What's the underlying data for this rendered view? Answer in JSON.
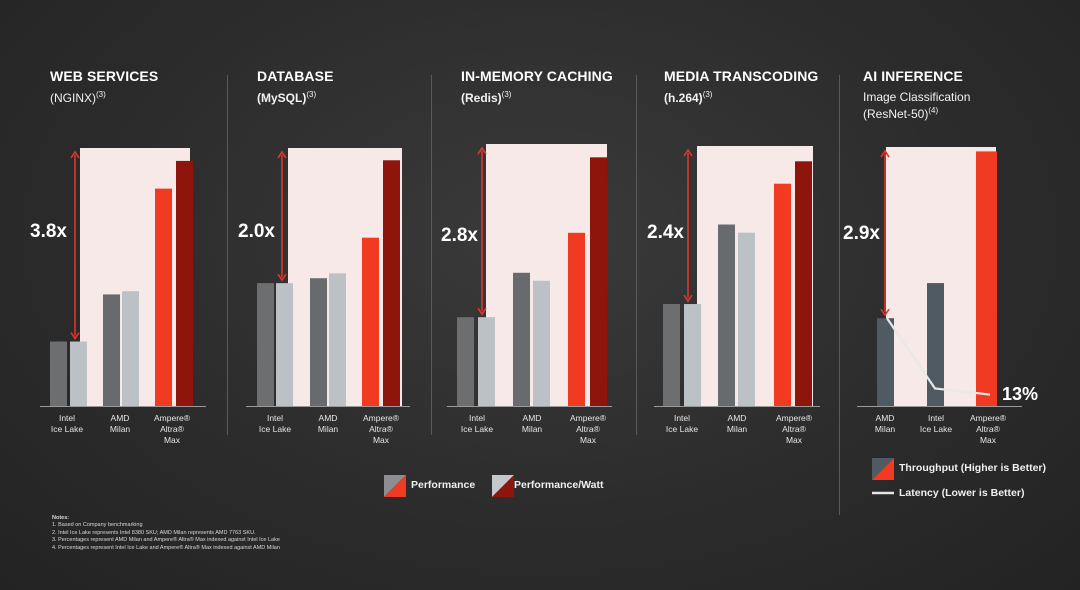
{
  "panels": [
    {
      "title": "WEB SERVICES",
      "subtitle": "(NGINX)",
      "subtitle_note": "(3)",
      "multiplier": "3.8x",
      "x_labels": [
        [
          "Intel",
          "Ice Lake"
        ],
        [
          "AMD",
          "Milan"
        ],
        [
          "Ampere®",
          "Altra®",
          "Max"
        ]
      ]
    },
    {
      "title": "DATABASE",
      "subtitle": "(MySQL)",
      "subtitle_note": "(3)",
      "multiplier": "2.0x",
      "x_labels": [
        [
          "Intel",
          "Ice Lake"
        ],
        [
          "AMD",
          "Milan"
        ],
        [
          "Ampere®",
          "Altra®",
          "Max"
        ]
      ]
    },
    {
      "title": "IN-MEMORY CACHING",
      "subtitle": "(Redis)",
      "subtitle_note": "(3)",
      "multiplier": "2.8x",
      "x_labels": [
        [
          "Intel",
          "Ice Lake"
        ],
        [
          "AMD",
          "Milan"
        ],
        [
          "Ampere®",
          "Altra®",
          "Max"
        ]
      ]
    },
    {
      "title": "MEDIA TRANSCODING",
      "subtitle": "(h.264)",
      "subtitle_note": "(3)",
      "multiplier": "2.4x",
      "x_labels": [
        [
          "Intel",
          "Ice Lake"
        ],
        [
          "AMD",
          "Milan"
        ],
        [
          "Ampere®",
          "Altra®",
          "Max"
        ]
      ]
    },
    {
      "title": "AI INFERENCE",
      "subtitle_line1": "Image Classification",
      "subtitle": "(ResNet-50)",
      "subtitle_note": "(4)",
      "multiplier": "2.9x",
      "latency_label": "13%",
      "x_labels": [
        [
          "AMD",
          "Milan"
        ],
        [
          "Intel",
          "Ice Lake"
        ],
        [
          "Ampere®",
          "Altra®",
          "Max"
        ]
      ]
    }
  ],
  "legend": {
    "performance": "Performance",
    "performance_watt": "Performance/Watt",
    "throughput": "Throughput (Higher is Better)",
    "latency": "Latency (Lower is Better)"
  },
  "notes": {
    "heading": "Notes:",
    "items": [
      "1.  Based on Company benchmarking",
      "2.  Intel Ice Lake represents Intel 8380 SKU; AMD Milan represents AMD 7763 SKU.",
      "3.  Percentages represent AMD Milan and Ampere® Altra® Max indexed against Intel Ice Lake",
      "4.  Percentages represent Intel Ice Lake and Ampere® Altra® Max indexed against AMD Milan"
    ]
  },
  "colors": {
    "gray_dark": "#6c6e70",
    "gray_light": "#bcc1c6",
    "red": "#f03a22",
    "dark_red": "#8e150c",
    "blue_gray": "#4f5a63",
    "highlight_bg": "#f6e9e8",
    "arrow": "#e0352a"
  },
  "chart_data": [
    {
      "type": "bar",
      "title": "WEB SERVICES (NGINX)",
      "categories": [
        "Intel Ice Lake",
        "AMD Milan",
        "Ampere Altra Max"
      ],
      "series": [
        {
          "name": "Performance",
          "values": [
            1.0,
            1.73,
            3.37
          ]
        },
        {
          "name": "Performance/Watt",
          "values": [
            1.0,
            1.78,
            3.8
          ]
        }
      ],
      "ylim": [
        0,
        4.0
      ]
    },
    {
      "type": "bar",
      "title": "DATABASE (MySQL)",
      "categories": [
        "Intel Ice Lake",
        "AMD Milan",
        "Ampere Altra Max"
      ],
      "series": [
        {
          "name": "Performance",
          "values": [
            1.0,
            1.04,
            1.37
          ]
        },
        {
          "name": "Performance/Watt",
          "values": [
            1.0,
            1.08,
            2.0
          ]
        }
      ],
      "ylim": [
        0,
        2.1
      ]
    },
    {
      "type": "bar",
      "title": "IN-MEMORY CACHING (Redis)",
      "categories": [
        "Intel Ice Lake",
        "AMD Milan",
        "Ampere Altra Max"
      ],
      "series": [
        {
          "name": "Performance",
          "values": [
            1.0,
            1.5,
            1.95
          ]
        },
        {
          "name": "Performance/Watt",
          "values": [
            1.0,
            1.41,
            2.8
          ]
        }
      ],
      "ylim": [
        0,
        2.95
      ]
    },
    {
      "type": "bar",
      "title": "MEDIA TRANSCODING (h.264)",
      "categories": [
        "Intel Ice Lake",
        "AMD Milan",
        "Ampere Altra Max"
      ],
      "series": [
        {
          "name": "Performance",
          "values": [
            1.0,
            1.78,
            2.18
          ]
        },
        {
          "name": "Performance/Watt",
          "values": [
            1.0,
            1.7,
            2.4
          ]
        }
      ],
      "ylim": [
        0,
        2.55
      ]
    },
    {
      "type": "bar",
      "title": "AI INFERENCE Image Classification (ResNet-50)",
      "categories": [
        "AMD Milan",
        "Intel Ice Lake",
        "Ampere Altra Max"
      ],
      "series": [
        {
          "name": "Throughput (Higher is Better)",
          "values": [
            1.0,
            1.4,
            2.9
          ]
        },
        {
          "name": "Latency (Lower is Better)",
          "values": [
            1.0,
            0.2,
            0.13
          ]
        }
      ],
      "latency_label": "13%",
      "ylim": [
        0,
        2.95
      ]
    }
  ]
}
